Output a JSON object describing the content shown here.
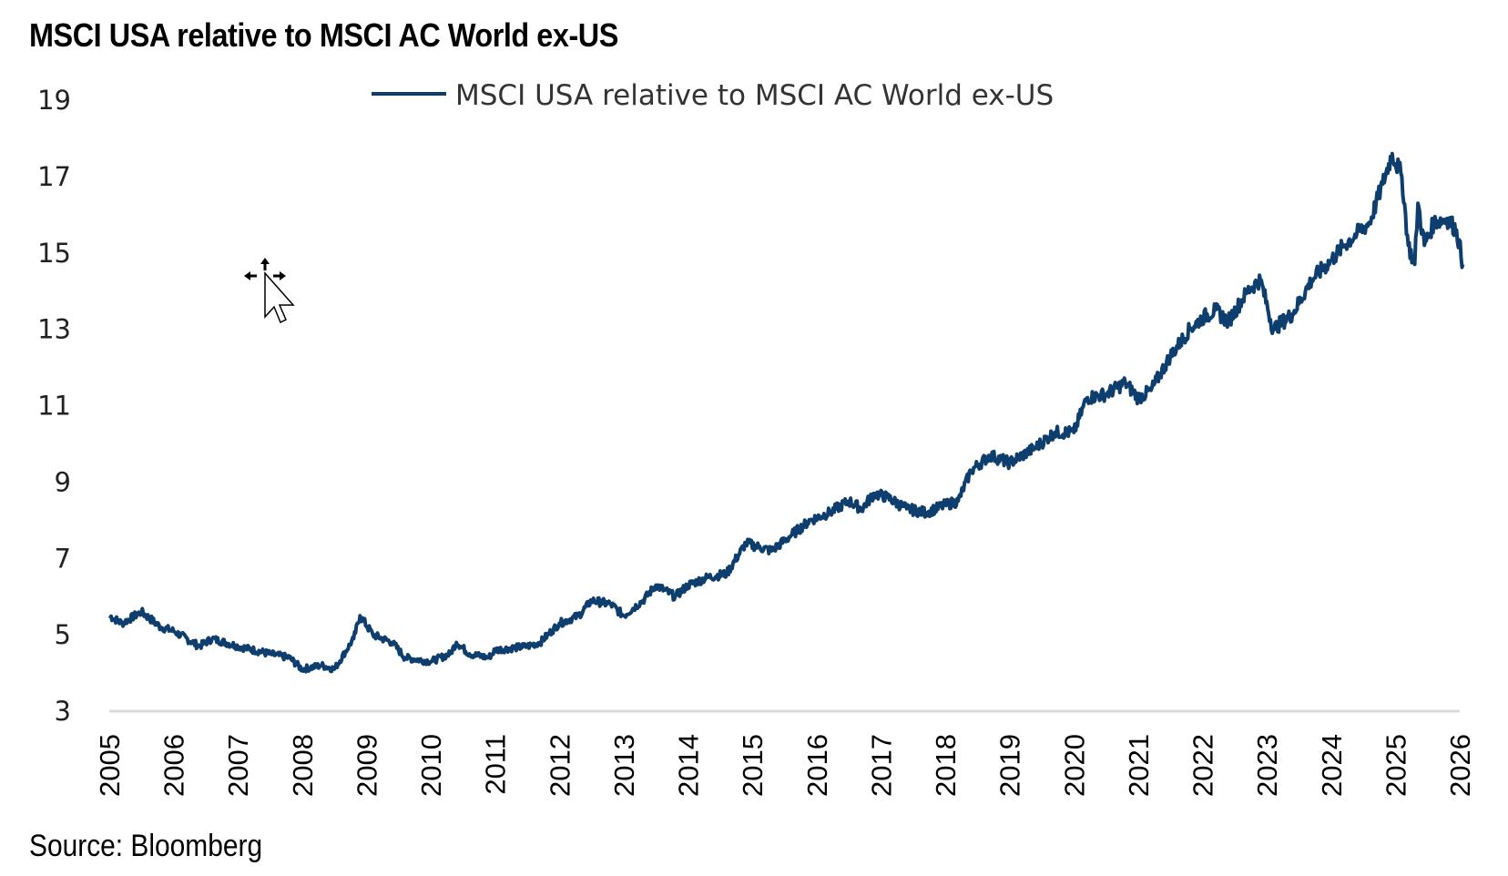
{
  "title": "MSCI USA relative to MSCI AC World ex-US",
  "source": "Source: Bloomberg",
  "cursor": {
    "icon": "move-cursor-icon"
  },
  "colors": {
    "series": "#0e3e6e",
    "axis": "#d9d9d9",
    "text": "#000000"
  },
  "chart_data": {
    "type": "line",
    "title": "MSCI USA relative to MSCI AC World ex-US",
    "xlabel": "",
    "ylabel": "",
    "ylim": [
      3,
      19
    ],
    "xlim": [
      2005,
      2026
    ],
    "yticks": [
      3,
      5,
      7,
      9,
      11,
      13,
      15,
      17,
      19
    ],
    "xticks": [
      "2005",
      "2006",
      "2007",
      "2008",
      "2009",
      "2010",
      "2011",
      "2012",
      "2013",
      "2014",
      "2015",
      "2016",
      "2017",
      "2018",
      "2019",
      "2020",
      "2021",
      "2022",
      "2023",
      "2024",
      "2025",
      "2026"
    ],
    "grid": false,
    "legend": {
      "position": "top-center",
      "entries": [
        "MSCI USA relative to MSCI AC World ex-US"
      ]
    },
    "series": [
      {
        "name": "MSCI USA relative to MSCI AC World ex-US",
        "color": "#0e3e6e",
        "x": [
          2005.0,
          2005.2,
          2005.5,
          2005.8,
          2006.0,
          2006.4,
          2006.6,
          2007.0,
          2007.5,
          2007.8,
          2008.0,
          2008.3,
          2008.5,
          2008.8,
          2008.9,
          2009.1,
          2009.4,
          2009.6,
          2010.0,
          2010.3,
          2010.4,
          2010.6,
          2010.9,
          2011.0,
          2011.5,
          2011.7,
          2012.0,
          2012.3,
          2012.5,
          2012.8,
          2013.0,
          2013.3,
          2013.5,
          2013.8,
          2014.0,
          2014.3,
          2014.6,
          2014.9,
          2015.1,
          2015.3,
          2015.6,
          2015.9,
          2016.2,
          2016.5,
          2016.7,
          2016.9,
          2017.1,
          2017.4,
          2017.7,
          2018.0,
          2018.2,
          2018.4,
          2018.7,
          2019.0,
          2019.4,
          2019.7,
          2020.0,
          2020.2,
          2020.5,
          2020.8,
          2021.0,
          2021.2,
          2021.5,
          2021.8,
          2022.0,
          2022.2,
          2022.4,
          2022.7,
          2022.9,
          2023.1,
          2023.4,
          2023.7,
          2024.0,
          2024.2,
          2024.4,
          2024.6,
          2024.8,
          2024.95,
          2025.1,
          2025.2,
          2025.3,
          2025.35,
          2025.45,
          2025.6,
          2025.8,
          2025.95,
          2026.05
        ],
        "y": [
          5.5,
          5.3,
          5.6,
          5.2,
          5.1,
          4.7,
          4.9,
          4.7,
          4.5,
          4.4,
          4.1,
          4.2,
          4.1,
          4.9,
          5.5,
          5.0,
          4.8,
          4.4,
          4.3,
          4.5,
          4.8,
          4.5,
          4.4,
          4.6,
          4.7,
          4.8,
          5.3,
          5.5,
          5.9,
          5.8,
          5.5,
          5.9,
          6.3,
          6.0,
          6.3,
          6.5,
          6.6,
          7.4,
          7.3,
          7.2,
          7.6,
          8.0,
          8.2,
          8.5,
          8.3,
          8.7,
          8.6,
          8.3,
          8.2,
          8.4,
          8.5,
          9.3,
          9.7,
          9.5,
          9.9,
          10.3,
          10.3,
          11.2,
          11.3,
          11.6,
          11.2,
          11.4,
          12.3,
          13.0,
          13.3,
          13.5,
          13.2,
          14.0,
          14.3,
          13.0,
          13.4,
          14.3,
          14.8,
          15.2,
          15.5,
          15.8,
          16.8,
          17.6,
          17.0,
          15.2,
          14.7,
          16.3,
          15.2,
          15.8,
          15.9,
          15.6,
          14.7
        ]
      }
    ]
  }
}
